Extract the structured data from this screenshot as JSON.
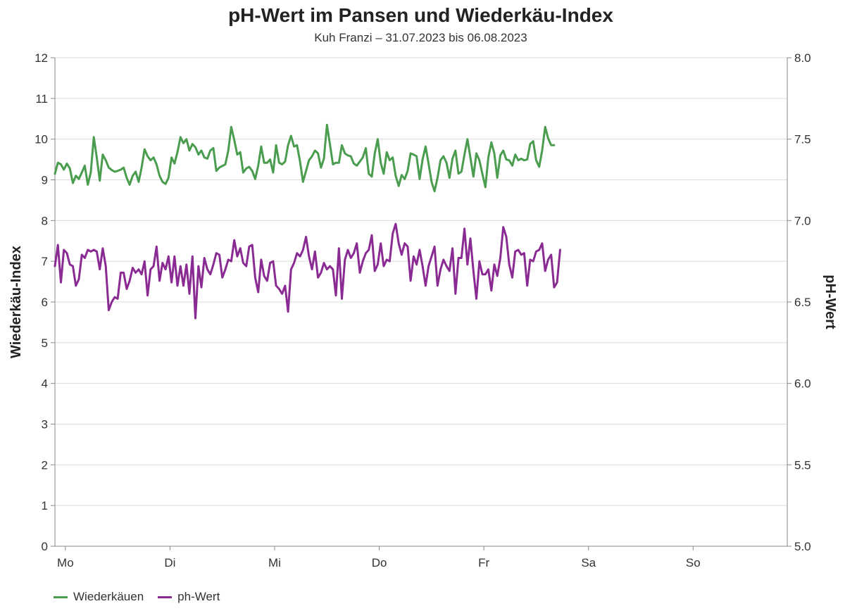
{
  "chart_data": {
    "type": "line",
    "title": "pH-Wert im Pansen und Wiederkäu-Index",
    "subtitle": "Kuh Franzi – 31.07.2023 bis 06.08.2023",
    "ylabel": "Wiederkäu-Index",
    "y2label": "pH-Wert",
    "ylim": [
      0,
      12
    ],
    "y2lim": [
      5.0,
      8.0
    ],
    "yticks": [
      "0",
      "1",
      "2",
      "3",
      "4",
      "5",
      "6",
      "7",
      "8",
      "9",
      "10",
      "11",
      "12"
    ],
    "y2ticks": [
      "5.0",
      "5.5",
      "6.0",
      "6.5",
      "7.0",
      "7.5",
      "8.0"
    ],
    "xlim": [
      0,
      7
    ],
    "xticks": [
      {
        "label": "Mo",
        "x": 0.1
      },
      {
        "label": "Di",
        "x": 1.1
      },
      {
        "label": "Mi",
        "x": 2.1
      },
      {
        "label": "Do",
        "x": 3.1
      },
      {
        "label": "Fr",
        "x": 4.1
      },
      {
        "label": "Sa",
        "x": 5.1
      },
      {
        "label": "So",
        "x": 6.1
      }
    ],
    "legend_position": "bottom-left",
    "series": [
      {
        "name": "Wiederkäuen",
        "axis": "left",
        "color": "#4a9d4f",
        "x_step": 0.0285714,
        "values": [
          9.15,
          9.42,
          9.38,
          9.25,
          9.4,
          9.28,
          8.92,
          9.1,
          9.02,
          9.18,
          9.35,
          8.88,
          9.18,
          10.05,
          9.55,
          8.98,
          9.62,
          9.48,
          9.3,
          9.24,
          9.2,
          9.22,
          9.25,
          9.3,
          9.05,
          8.88,
          9.1,
          9.2,
          8.95,
          9.3,
          9.75,
          9.58,
          9.48,
          9.55,
          9.38,
          9.1,
          8.95,
          8.9,
          9.05,
          9.55,
          9.4,
          9.68,
          10.05,
          9.9,
          10.0,
          9.72,
          9.88,
          9.8,
          9.62,
          9.72,
          9.55,
          9.52,
          9.72,
          9.78,
          9.22,
          9.3,
          9.34,
          9.38,
          9.72,
          10.3,
          9.98,
          9.62,
          9.68,
          9.18,
          9.28,
          9.32,
          9.22,
          9.02,
          9.35,
          9.82,
          9.42,
          9.42,
          9.5,
          9.18,
          9.85,
          9.42,
          9.38,
          9.45,
          9.85,
          10.08,
          9.82,
          9.85,
          9.45,
          8.95,
          9.22,
          9.48,
          9.58,
          9.72,
          9.65,
          9.3,
          9.52,
          10.35,
          9.88,
          9.38,
          9.42,
          9.42,
          9.85,
          9.65,
          9.6,
          9.58,
          9.4,
          9.35,
          9.45,
          9.55,
          9.78,
          9.15,
          9.08,
          9.65,
          10.0,
          9.42,
          9.15,
          9.68,
          9.48,
          9.55,
          9.1,
          8.85,
          9.12,
          9.02,
          9.22,
          9.65,
          9.62,
          9.58,
          9.02,
          9.5,
          9.82,
          9.4,
          8.95,
          8.72,
          9.05,
          9.48,
          9.58,
          9.42,
          9.05,
          9.52,
          9.72,
          9.15,
          9.2,
          9.62,
          10.0,
          9.55,
          9.08,
          9.65,
          9.48,
          9.15,
          8.82,
          9.55,
          9.92,
          9.65,
          9.05,
          9.6,
          9.72,
          9.5,
          9.48,
          9.35,
          9.62,
          9.48,
          9.52,
          9.48,
          9.5,
          9.88,
          9.95,
          9.48,
          9.32,
          9.72,
          10.3,
          10.02,
          9.85,
          9.85
        ]
      },
      {
        "name": "ph-Wert",
        "axis": "right",
        "color": "#8a2b93",
        "x_step": 0.0285714,
        "values": [
          6.72,
          6.85,
          6.62,
          6.82,
          6.8,
          6.73,
          6.72,
          6.6,
          6.64,
          6.79,
          6.77,
          6.82,
          6.81,
          6.82,
          6.81,
          6.7,
          6.83,
          6.72,
          6.45,
          6.5,
          6.53,
          6.52,
          6.68,
          6.68,
          6.58,
          6.63,
          6.71,
          6.68,
          6.7,
          6.67,
          6.75,
          6.54,
          6.7,
          6.72,
          6.84,
          6.63,
          6.74,
          6.7,
          6.78,
          6.62,
          6.78,
          6.6,
          6.72,
          6.6,
          6.73,
          6.55,
          6.78,
          6.4,
          6.72,
          6.59,
          6.77,
          6.7,
          6.67,
          6.73,
          6.8,
          6.79,
          6.65,
          6.7,
          6.76,
          6.75,
          6.88,
          6.78,
          6.83,
          6.74,
          6.72,
          6.84,
          6.85,
          6.65,
          6.56,
          6.76,
          6.66,
          6.63,
          6.74,
          6.75,
          6.6,
          6.58,
          6.55,
          6.6,
          6.44,
          6.7,
          6.74,
          6.8,
          6.78,
          6.82,
          6.9,
          6.78,
          6.7,
          6.81,
          6.65,
          6.68,
          6.74,
          6.7,
          6.72,
          6.7,
          6.54,
          6.83,
          6.52,
          6.76,
          6.82,
          6.77,
          6.8,
          6.86,
          6.68,
          6.75,
          6.8,
          6.82,
          6.91,
          6.69,
          6.73,
          6.86,
          6.72,
          6.76,
          6.75,
          6.92,
          6.98,
          6.86,
          6.79,
          6.86,
          6.84,
          6.63,
          6.78,
          6.73,
          6.82,
          6.72,
          6.6,
          6.72,
          6.78,
          6.84,
          6.6,
          6.7,
          6.76,
          6.72,
          6.69,
          6.83,
          6.55,
          6.77,
          6.77,
          6.95,
          6.73,
          6.89,
          6.69,
          6.52,
          6.75,
          6.67,
          6.67,
          6.7,
          6.57,
          6.73,
          6.66,
          6.77,
          6.96,
          6.9,
          6.73,
          6.65,
          6.81,
          6.82,
          6.79,
          6.8,
          6.6,
          6.76,
          6.75,
          6.81,
          6.82,
          6.86,
          6.69,
          6.76,
          6.79,
          6.59,
          6.62,
          6.82
        ]
      }
    ]
  }
}
